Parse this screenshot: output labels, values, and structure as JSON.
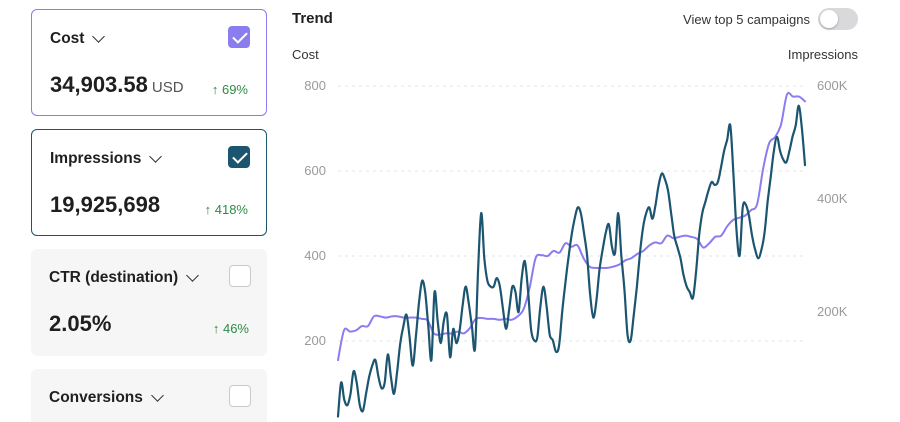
{
  "cards": [
    {
      "title": "Cost",
      "value": "34,903.58",
      "unit": "USD",
      "delta": "↑ 69%",
      "checked": true,
      "color": "#8b7cf0"
    },
    {
      "title": "Impressions",
      "value": "19,925,698",
      "unit": "",
      "delta": "↑ 418%",
      "checked": true,
      "color": "#1c5570"
    },
    {
      "title": "CTR (destination)",
      "value": "2.05%",
      "unit": "",
      "delta": "↑ 46%",
      "checked": false
    },
    {
      "title": "Conversions",
      "value": "",
      "unit": "",
      "delta": "",
      "checked": false
    }
  ],
  "trend": {
    "title": "Trend",
    "toggle_label": "View top 5 campaigns",
    "toggle_on": false
  },
  "chart_data": {
    "type": "line",
    "y_left_label": "Cost",
    "y_right_label": "Impressions",
    "y_left_ticks": [
      "800",
      "600",
      "400",
      "200"
    ],
    "y_right_ticks": [
      "600K",
      "400K",
      "200K"
    ],
    "ylim_left": [
      100,
      800
    ],
    "ylim_right": [
      0,
      600000
    ],
    "series": [
      {
        "axis": "left",
        "color": "#8b7cf0",
        "values": [
          155,
          225,
          222,
          225,
          235,
          235,
          258,
          258,
          255,
          258,
          258,
          255,
          255,
          255,
          252,
          248,
          218,
          215,
          218,
          218,
          222,
          218,
          230,
          252,
          254,
          252,
          252,
          250,
          252,
          250,
          258,
          275,
          325,
          395,
          402,
          400,
          412,
          408,
          430,
          422,
          425,
          395,
          375,
          372,
          372,
          372,
          375,
          380,
          390,
          395,
          405,
          412,
          425,
          432,
          430,
          448,
          442,
          445,
          448,
          445,
          440,
          420,
          430,
          445,
          448,
          470,
          485,
          490,
          495,
          508,
          522,
          605,
          665,
          680,
          710,
          780,
          775,
          775,
          764
        ]
      },
      {
        "axis": "right",
        "color": "#1c5570",
        "values": [
          15000,
          75000,
          45000,
          35000,
          55000,
          95000,
          75000,
          35000,
          25000,
          55000,
          85000,
          105000,
          115000,
          85000,
          65000,
          75000,
          125000,
          85000,
          55000,
          95000,
          145000,
          175000,
          195000,
          155000,
          105000,
          155000,
          215000,
          255000,
          235000,
          175000,
          115000,
          235000,
          185000,
          145000,
          185000,
          195000,
          120000,
          170000,
          145000,
          165000,
          210000,
          245000,
          215000,
          175000,
          135000,
          275000,
          375000,
          295000,
          255000,
          245000,
          245000,
          260000,
          245000,
          205000,
          170000,
          205000,
          245000,
          235000,
          200000,
          260000,
          290000,
          240000,
          170000,
          150000,
          155000,
          210000,
          245000,
          210000,
          160000,
          150000,
          130000,
          140000,
          200000,
          250000,
          295000,
          335000,
          365000,
          385000,
          375000,
          340000,
          300000,
          230000,
          190000,
          220000,
          275000,
          310000,
          340000,
          355000,
          315000,
          305000,
          375000,
          300000,
          240000,
          160000,
          150000,
          195000,
          245000,
          305000,
          350000,
          375000,
          385000,
          365000,
          390000,
          425000,
          445000,
          435000,
          415000,
          375000,
          335000,
          315000,
          295000,
          265000,
          245000,
          235000,
          225000,
          270000,
          335000,
          375000,
          395000,
          415000,
          430000,
          425000,
          430000,
          455000,
          485000,
          505000,
          530000,
          445000,
          345000,
          300000,
          385000,
          390000,
          370000,
          335000,
          310000,
          295000,
          310000,
          340000,
          395000,
          440000,
          485000,
          510000,
          485000,
          470000,
          465000,
          485000,
          510000,
          530000,
          565000,
          525000,
          460000
        ]
      }
    ]
  }
}
